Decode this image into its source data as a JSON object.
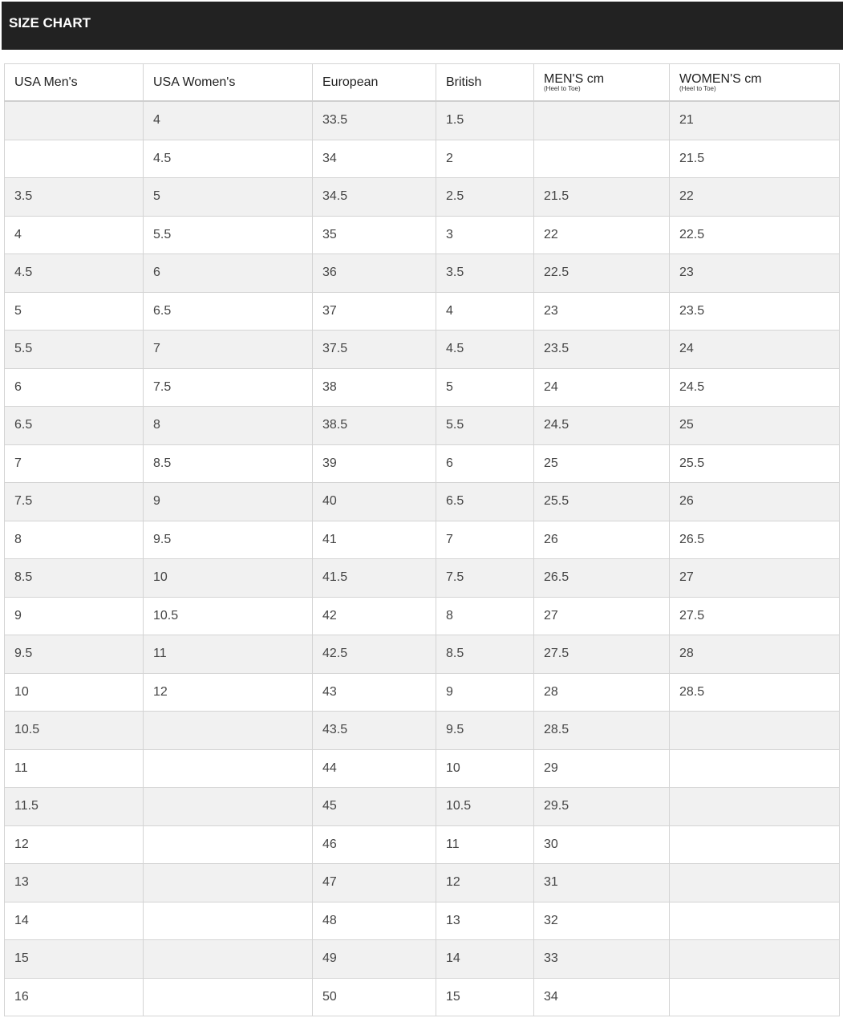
{
  "title": "SIZE CHART",
  "columns": [
    {
      "label": "USA Men's",
      "sub": ""
    },
    {
      "label": "USA Women's",
      "sub": ""
    },
    {
      "label": "European",
      "sub": ""
    },
    {
      "label": "British",
      "sub": ""
    },
    {
      "label": "MEN'S cm",
      "sub": "(Heel to Toe)"
    },
    {
      "label": "WOMEN'S cm",
      "sub": "(Heel to Toe)"
    }
  ],
  "rows": [
    [
      "",
      "4",
      "33.5",
      "1.5",
      "",
      "21"
    ],
    [
      "",
      "4.5",
      "34",
      "2",
      "",
      "21.5"
    ],
    [
      "3.5",
      "5",
      "34.5",
      "2.5",
      "21.5",
      "22"
    ],
    [
      "4",
      "5.5",
      "35",
      "3",
      "22",
      "22.5"
    ],
    [
      "4.5",
      "6",
      "36",
      "3.5",
      "22.5",
      "23"
    ],
    [
      "5",
      "6.5",
      "37",
      "4",
      "23",
      "23.5"
    ],
    [
      "5.5",
      "7",
      "37.5",
      "4.5",
      "23.5",
      "24"
    ],
    [
      "6",
      "7.5",
      "38",
      "5",
      "24",
      "24.5"
    ],
    [
      "6.5",
      "8",
      "38.5",
      "5.5",
      "24.5",
      "25"
    ],
    [
      "7",
      "8.5",
      "39",
      "6",
      "25",
      "25.5"
    ],
    [
      "7.5",
      "9",
      "40",
      "6.5",
      "25.5",
      "26"
    ],
    [
      "8",
      "9.5",
      "41",
      "7",
      "26",
      "26.5"
    ],
    [
      "8.5",
      "10",
      "41.5",
      "7.5",
      "26.5",
      "27"
    ],
    [
      "9",
      "10.5",
      "42",
      "8",
      "27",
      "27.5"
    ],
    [
      "9.5",
      "11",
      "42.5",
      "8.5",
      "27.5",
      "28"
    ],
    [
      "10",
      "12",
      "43",
      "9",
      "28",
      "28.5"
    ],
    [
      "10.5",
      "",
      "43.5",
      "9.5",
      "28.5",
      ""
    ],
    [
      "11",
      "",
      "44",
      "10",
      "29",
      ""
    ],
    [
      "11.5",
      "",
      "45",
      "10.5",
      "29.5",
      ""
    ],
    [
      "12",
      "",
      "46",
      "11",
      "30",
      ""
    ],
    [
      "13",
      "",
      "47",
      "12",
      "31",
      ""
    ],
    [
      "14",
      "",
      "48",
      "13",
      "32",
      ""
    ],
    [
      "15",
      "",
      "49",
      "14",
      "33",
      ""
    ],
    [
      "16",
      "",
      "50",
      "15",
      "34",
      ""
    ]
  ]
}
